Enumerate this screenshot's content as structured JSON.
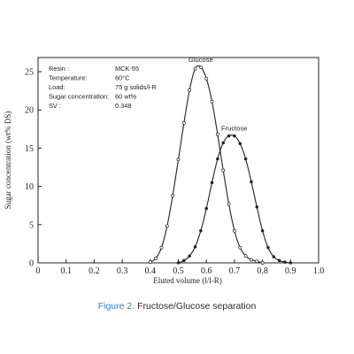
{
  "chart_data": {
    "type": "line",
    "xlabel": "Eluted volume (l/l-R)",
    "ylabel": "Sugar concentration (wt% DS)",
    "xlim": [
      0,
      1.0
    ],
    "ylim": [
      0,
      27
    ],
    "x_ticks": [
      "0",
      "0.1",
      "0.2",
      "0.3",
      "0.4",
      "0.5",
      "0.6",
      "0.7",
      "0.8",
      "0.9",
      "1.0"
    ],
    "y_ticks": [
      "0",
      "5",
      "10",
      "15",
      "20",
      "25"
    ],
    "grid": false,
    "info": [
      {
        "label": "Resin :",
        "value": "MCK-55"
      },
      {
        "label": "Temperature:",
        "value": "60°C"
      },
      {
        "label": "Load:",
        "value": "75 g solids/l-R"
      },
      {
        "label": "Sugar concentration:",
        "value": "60 wt%"
      },
      {
        "label": "SV :",
        "value": "0.348"
      }
    ],
    "series": [
      {
        "name": "Glucose",
        "marker": "open-circle",
        "x": [
          0.4,
          0.42,
          0.44,
          0.46,
          0.48,
          0.5,
          0.52,
          0.54,
          0.56,
          0.58,
          0.6,
          0.62,
          0.64,
          0.66,
          0.68,
          0.7,
          0.72,
          0.74,
          0.76,
          0.78,
          0.8
        ],
        "y": [
          0.1,
          0.6,
          2.0,
          4.8,
          8.8,
          13.5,
          18.3,
          22.6,
          25.4,
          25.6,
          24.1,
          21.1,
          16.8,
          12.1,
          7.7,
          4.2,
          2.0,
          0.9,
          0.4,
          0.2,
          0.0
        ]
      },
      {
        "name": "Fructose",
        "marker": "filled-circle",
        "x": [
          0.5,
          0.52,
          0.54,
          0.56,
          0.58,
          0.6,
          0.62,
          0.64,
          0.66,
          0.68,
          0.7,
          0.72,
          0.74,
          0.76,
          0.78,
          0.8,
          0.82,
          0.84,
          0.86,
          0.88,
          0.9
        ],
        "y": [
          0.0,
          0.3,
          0.9,
          2.1,
          4.2,
          7.1,
          10.5,
          13.6,
          15.7,
          16.6,
          16.6,
          15.6,
          13.6,
          10.6,
          7.3,
          4.2,
          2.0,
          0.8,
          0.3,
          0.1,
          0.0
        ]
      }
    ]
  },
  "caption": {
    "number": "Figure 2.",
    "text": "Fructose/Glucose separation"
  }
}
